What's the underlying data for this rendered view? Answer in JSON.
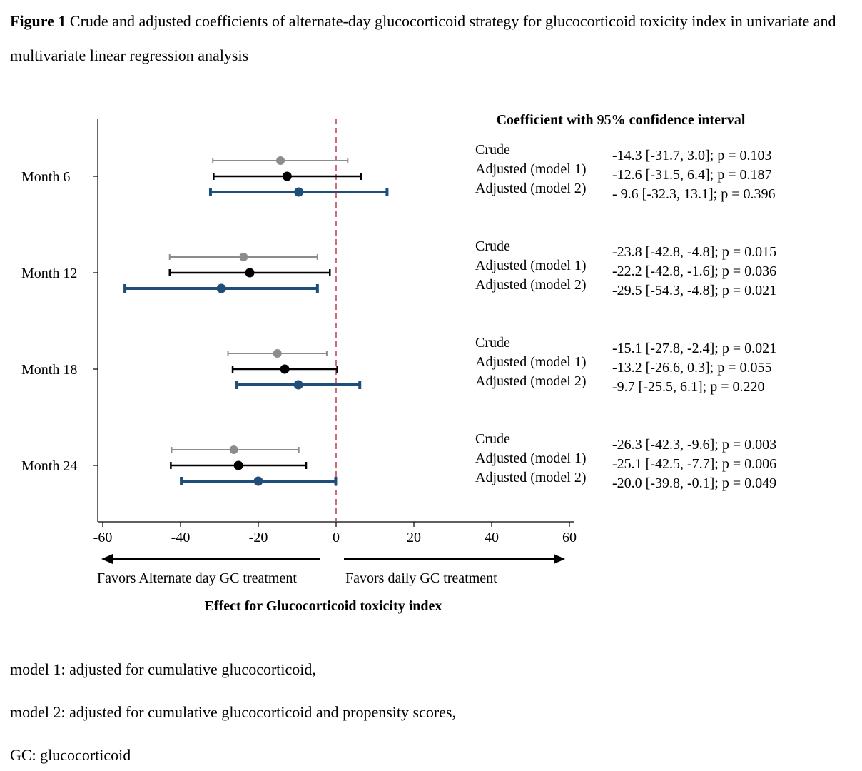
{
  "figure": {
    "label": "Figure 1",
    "caption": "Crude and adjusted coefficients of alternate-day glucocorticoid strategy for glucocorticoid toxicity index in univariate and multivariate linear regression analysis"
  },
  "notes": [
    "model 1: adjusted for cumulative glucocorticoid,",
    "model 2: adjusted for cumulative glucocorticoid and propensity scores,",
    "GC: glucocorticoid"
  ],
  "chart_data": {
    "type": "forest",
    "xlabel": "Effect for Glucocorticoid toxicity index",
    "xlim": [
      -62,
      62
    ],
    "xticks": [
      -60,
      -40,
      -20,
      0,
      20,
      40,
      60
    ],
    "reference_line": 0,
    "ci_header": "Coefficient with 95% confidence interval",
    "arrows": {
      "left": "Favors Alternate day GC treatment",
      "right": "Favors daily GC treatment"
    },
    "colors": {
      "Crude": "#8c8c8c",
      "Adjusted (model 1)": "#000000",
      "Adjusted (model 2)": "#1f4e79",
      "reference": "#c0394b"
    },
    "series_names": [
      "Crude",
      "Adjusted (model 1)",
      "Adjusted (model 2)"
    ],
    "groups": [
      {
        "label": "Month 6",
        "rows": [
          {
            "model": "Crude",
            "estimate": -14.3,
            "lower": -31.7,
            "upper": 3.0,
            "text": "-14.3 [-31.7, 3.0]; p = 0.103"
          },
          {
            "model": "Adjusted (model 1)",
            "estimate": -12.6,
            "lower": -31.5,
            "upper": 6.4,
            "text": "-12.6 [-31.5, 6.4]; p = 0.187"
          },
          {
            "model": "Adjusted (model 2)",
            "estimate": -9.6,
            "lower": -32.3,
            "upper": 13.1,
            "text": "- 9.6  [-32.3, 13.1]; p = 0.396"
          }
        ]
      },
      {
        "label": "Month 12",
        "rows": [
          {
            "model": "Crude",
            "estimate": -23.8,
            "lower": -42.8,
            "upper": -4.8,
            "text": "-23.8 [-42.8, -4.8]; p = 0.015"
          },
          {
            "model": "Adjusted (model 1)",
            "estimate": -22.2,
            "lower": -42.8,
            "upper": -1.6,
            "text": "-22.2 [-42.8, -1.6]; p = 0.036"
          },
          {
            "model": "Adjusted (model 2)",
            "estimate": -29.5,
            "lower": -54.3,
            "upper": -4.8,
            "text": "-29.5 [-54.3, -4.8]; p = 0.021"
          }
        ]
      },
      {
        "label": "Month 18",
        "rows": [
          {
            "model": "Crude",
            "estimate": -15.1,
            "lower": -27.8,
            "upper": -2.4,
            "text": "-15.1 [-27.8, -2.4]; p = 0.021"
          },
          {
            "model": "Adjusted (model 1)",
            "estimate": -13.2,
            "lower": -26.6,
            "upper": 0.3,
            "text": "-13.2 [-26.6, 0.3]; p = 0.055"
          },
          {
            "model": "Adjusted (model 2)",
            "estimate": -9.7,
            "lower": -25.5,
            "upper": 6.1,
            "text": "-9.7  [-25.5, 6.1]; p = 0.220"
          }
        ]
      },
      {
        "label": "Month 24",
        "rows": [
          {
            "model": "Crude",
            "estimate": -26.3,
            "lower": -42.3,
            "upper": -9.6,
            "text": "-26.3 [-42.3, -9.6]; p = 0.003"
          },
          {
            "model": "Adjusted (model 1)",
            "estimate": -25.1,
            "lower": -42.5,
            "upper": -7.7,
            "text": "-25.1 [-42.5, -7.7]; p = 0.006"
          },
          {
            "model": "Adjusted (model 2)",
            "estimate": -20.0,
            "lower": -39.8,
            "upper": -0.1,
            "text": "-20.0 [-39.8, -0.1]; p = 0.049"
          }
        ]
      }
    ]
  }
}
